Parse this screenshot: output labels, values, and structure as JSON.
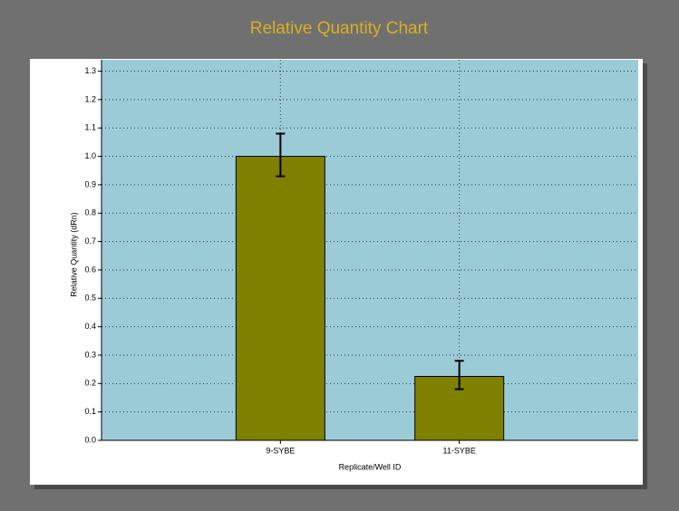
{
  "chart_data": {
    "type": "bar",
    "title": "Relative Quantity Chart",
    "x_label": "Replicate/Well ID",
    "y_label": "Relative Quantity (dRn)",
    "categories": [
      "9-SYBE",
      "11-SYBE"
    ],
    "values": [
      1.0,
      0.225
    ],
    "err_low": [
      0.93,
      0.18
    ],
    "err_high": [
      1.08,
      0.28
    ],
    "color": "#808000",
    "ylim": [
      0,
      1.34
    ],
    "yticks": [
      {
        "value": 0,
        "label": "0.0"
      },
      0.1,
      0.2,
      0.3,
      0.4,
      0.5,
      0.6,
      0.7,
      0.8,
      0.9,
      {
        "value": 1,
        "label": "1.0"
      },
      1.1,
      1.2,
      1.3
    ],
    "grid": true
  }
}
